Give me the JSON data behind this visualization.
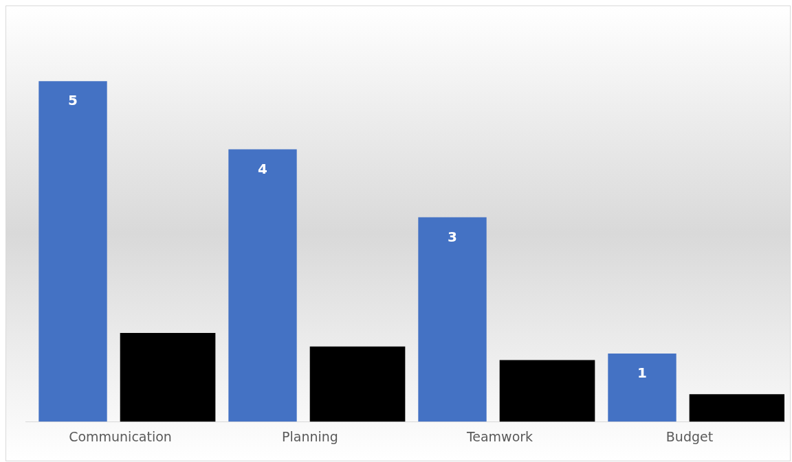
{
  "chart_data": {
    "type": "bar",
    "categories": [
      "Communication",
      "Planning",
      "Teamwork",
      "Budget"
    ],
    "series": [
      {
        "color": "#4472c4",
        "values": [
          5,
          4,
          3,
          1
        ],
        "value_labels": [
          "5",
          "4",
          "3",
          "1"
        ]
      },
      {
        "color": "#000000",
        "values": [
          1.3,
          1.1,
          0.9,
          0.4
        ]
      }
    ],
    "tick_labels": "x",
    "grid": false,
    "legend": false
  }
}
